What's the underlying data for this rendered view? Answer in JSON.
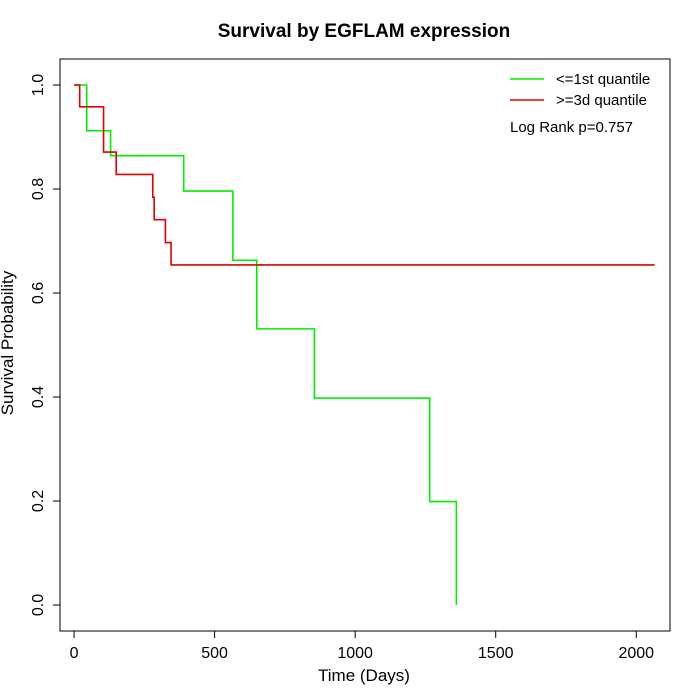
{
  "chart_data": {
    "type": "line",
    "step": true,
    "title": "Survival by EGFLAM expression",
    "xlabel": "Time (Days)",
    "ylabel": "Survival Probability",
    "xlim": [
      -50,
      2120
    ],
    "ylim": [
      -0.05,
      1.05
    ],
    "xticks": [
      0,
      500,
      1000,
      1500,
      2000
    ],
    "yticks": [
      0.0,
      0.2,
      0.4,
      0.6,
      0.8,
      1.0
    ],
    "xtick_labels": [
      "0",
      "500",
      "1000",
      "1500",
      "2000"
    ],
    "ytick_labels": [
      "0.0",
      "0.2",
      "0.4",
      "0.6",
      "0.8",
      "1.0"
    ],
    "grid": false,
    "legend_position": "top-right",
    "annotation": "Log Rank p=0.757",
    "series": [
      {
        "name": "<=1st quantile",
        "color": "#00ee00",
        "x": [
          0,
          45,
          130,
          390,
          565,
          650,
          855,
          1265,
          1360
        ],
        "y": [
          1.0,
          0.912,
          0.864,
          0.796,
          0.663,
          0.531,
          0.398,
          0.199,
          0.0
        ]
      },
      {
        "name": ">=3d quantile",
        "color": "#dd0000",
        "x": [
          0,
          20,
          105,
          150,
          280,
          285,
          325,
          345,
          2065
        ],
        "y": [
          1.0,
          0.958,
          0.871,
          0.828,
          0.784,
          0.741,
          0.697,
          0.654,
          0.654
        ]
      }
    ]
  }
}
